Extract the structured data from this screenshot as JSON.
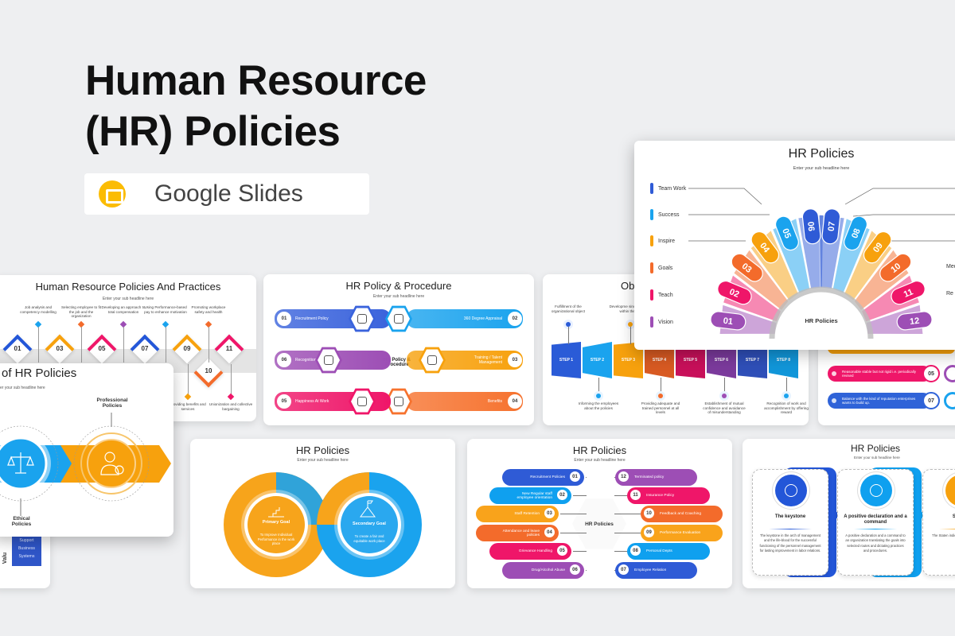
{
  "hero": {
    "title_line1": "Human Resource",
    "title_line2": "(HR) Policies",
    "badge_label": "Google Slides",
    "badge_icon": "google-slides-icon",
    "badge_color": "#fbbc04"
  },
  "subtitle": "Enter your sub headline here",
  "practices": {
    "title": "Human Resource Policies And Practices",
    "diamonds": [
      {
        "num": "01",
        "color": "#2356d8"
      },
      {
        "num": "03",
        "color": "#f7a10d"
      },
      {
        "num": "05",
        "color": "#ef1669"
      },
      {
        "num": "07",
        "color": "#2356d8"
      },
      {
        "num": "09",
        "color": "#f7a10d"
      },
      {
        "num": "11",
        "color": "#ef1669"
      }
    ],
    "lower_diamond": {
      "num": "10",
      "color": "#f36b2b"
    },
    "top_captions": [
      {
        "text": "Job analysis and competency modelling",
        "color": "#1aa3ee"
      },
      {
        "text": "Selecting employee to fit the job and the organization",
        "color": "#f36b2b"
      },
      {
        "text": "Developing an approach to total compensation",
        "color": "#9d4eb5"
      },
      {
        "text": "Using Performance-based pay to enhance motivation",
        "color": "#1aa3ee"
      },
      {
        "text": "Promoting workplace safety and health",
        "color": "#f36b2b"
      }
    ],
    "bottom_captions": [
      {
        "text": "Providing benefits and services",
        "color": "#f7a10d"
      },
      {
        "text": "Unionization and collective bargaining",
        "color": "#ef1669"
      }
    ]
  },
  "types": {
    "title": "of HR Policies",
    "subtitle": "er your sub headline here",
    "professional": "Professional Policies",
    "ethical": "Ethical Policies",
    "colors": {
      "blue": "#1aa3ee",
      "orange": "#f7a10d"
    }
  },
  "values_partial": {
    "box_text": "Support Business Systems",
    "side_text": "Valu"
  },
  "procedure": {
    "title": "HR Policy & Procedure",
    "center": "HR Policy & Procedure",
    "items": [
      {
        "num": "01",
        "label": "Recruitment Policy",
        "color": "#3a63dc",
        "icon": "recruitment-icon"
      },
      {
        "num": "02",
        "label": "360 Degree Appraisal",
        "color": "#1aa3ee",
        "icon": "appraisal-360-icon"
      },
      {
        "num": "03",
        "label": "Training / Talent Management",
        "color": "#f7a10d",
        "icon": "training-icon"
      },
      {
        "num": "04",
        "label": "Benefits",
        "color": "#f6722e",
        "icon": "benefits-icon"
      },
      {
        "num": "05",
        "label": "Happiness At Work",
        "color": "#ef1669",
        "icon": "happiness-icon"
      },
      {
        "num": "06",
        "label": "Recognition",
        "color": "#9d4eb5",
        "icon": "recognition-icon"
      }
    ]
  },
  "objectives": {
    "title": "Obj",
    "steps": [
      {
        "label": "STEP 1",
        "color": "#2a5bd7"
      },
      {
        "label": "STEP 2",
        "color": "#1aa3ee"
      },
      {
        "label": "STEP 3",
        "color": "#f7a10d"
      },
      {
        "label": "STEP 4",
        "color": "#d85a22"
      },
      {
        "label": "STEP 5",
        "color": "#c8105a"
      },
      {
        "label": "STEP 6",
        "color": "#7b3a9c"
      },
      {
        "label": "STEP 7",
        "color": "#2f4fb8"
      },
      {
        "label": "STEP 8",
        "color": "#1196d9"
      }
    ],
    "top_captions": [
      "Fulfillment of the organizational object",
      "Developme sincere sense within the ent"
    ],
    "bottom_captions": [
      "Informing the employees about the policies",
      "Providing adequate and trained personnel at all levels",
      "Establishment of mutual confidence and avoidance of misunderstanding",
      "Recognition of work and accomplishment by offering reward"
    ]
  },
  "features_partial": {
    "items": [
      {
        "num": "05",
        "text": "Reasonable stable but not rigid i.e. periodically revised",
        "color": "#ef1669"
      },
      {
        "num": "07",
        "text": "Balance with the kind of reputation enterprises wants to build up.",
        "color": "#2f63d8"
      }
    ]
  },
  "fan": {
    "title": "HR Policies",
    "center": "HR Policies",
    "left_labels": [
      {
        "label": "Team Work",
        "color": "#2f5bd6"
      },
      {
        "label": "Success",
        "color": "#1aa3ee"
      },
      {
        "label": "Inspire",
        "color": "#f7a10d"
      },
      {
        "label": "Goals",
        "color": "#f36b2b"
      },
      {
        "label": "Teach",
        "color": "#ef1669"
      },
      {
        "label": "Vision",
        "color": "#9d4eb5"
      }
    ],
    "right_labels_partial": [
      "Med",
      "Re"
    ],
    "segments": [
      {
        "num": "01",
        "color": "#9d4eb5"
      },
      {
        "num": "02",
        "color": "#ef1669"
      },
      {
        "num": "03",
        "color": "#f36b2b"
      },
      {
        "num": "04",
        "color": "#f7a10d"
      },
      {
        "num": "05",
        "color": "#1aa3ee"
      },
      {
        "num": "06",
        "color": "#2f5bd6"
      },
      {
        "num": "07",
        "color": "#2f5bd6"
      },
      {
        "num": "08",
        "color": "#1aa3ee"
      },
      {
        "num": "09",
        "color": "#f7a10d"
      },
      {
        "num": "10",
        "color": "#f36b2b"
      },
      {
        "num": "11",
        "color": "#ef1669"
      },
      {
        "num": "12",
        "color": "#9d4eb5"
      }
    ]
  },
  "goals": {
    "title": "HR Policies",
    "primary": {
      "title": "Primary Goal",
      "text": "To Improve Individual Performance in the work place",
      "color": "#f7a41b"
    },
    "secondary": {
      "title": "Secondary Goal",
      "text": "To create a fair and equitable work place",
      "color": "#1aa3ee"
    }
  },
  "hex_list": {
    "title": "HR Policies",
    "center": "HR Policies",
    "left": [
      {
        "num": "01",
        "label": "Recruitment Policies",
        "color": "#2f5bd6"
      },
      {
        "num": "02",
        "label": "New Regular staff employee orientation",
        "color": "#0fa0ef"
      },
      {
        "num": "03",
        "label": "Staff Retention",
        "color": "#f9a31b"
      },
      {
        "num": "04",
        "label": "Attendance and leave policies",
        "color": "#f36b2b"
      },
      {
        "num": "05",
        "label": "Grievance Handling",
        "color": "#ef1669"
      },
      {
        "num": "06",
        "label": "Drug/Alcohol Abuse",
        "color": "#9d4eb5"
      }
    ],
    "right": [
      {
        "num": "12",
        "label": "Terminated policy",
        "color": "#9d4eb5"
      },
      {
        "num": "11",
        "label": "Insurance Policy",
        "color": "#ef1669"
      },
      {
        "num": "10",
        "label": "Feedback and Coaching",
        "color": "#f36b2b"
      },
      {
        "num": "09",
        "label": "Performance Evaluation",
        "color": "#f9a31b"
      },
      {
        "num": "08",
        "label": "Personal Depts",
        "color": "#0fa0ef"
      },
      {
        "num": "07",
        "label": "Employee Relation",
        "color": "#2f5bd6"
      }
    ]
  },
  "cards": {
    "title": "HR Policies",
    "items": [
      {
        "title": "The keystone",
        "text": "The keystone in the arch of management and the life-blood for the successful functioning of the personnel management for lasting improvement in labor relations.",
        "color": "#2356d8",
        "icon": "brain-icon"
      },
      {
        "title": "A positive declaration and a command",
        "text": "A positive declaration and a command to an organization translating the goals into selected routes and dictating practices and procedures.",
        "color": "#0fa0ef",
        "icon": "target-icon"
      },
      {
        "title": "Stat int",
        "text": "The Staten indicating a general cou pu",
        "color": "#f7a10d",
        "icon": "statement-icon"
      }
    ]
  }
}
